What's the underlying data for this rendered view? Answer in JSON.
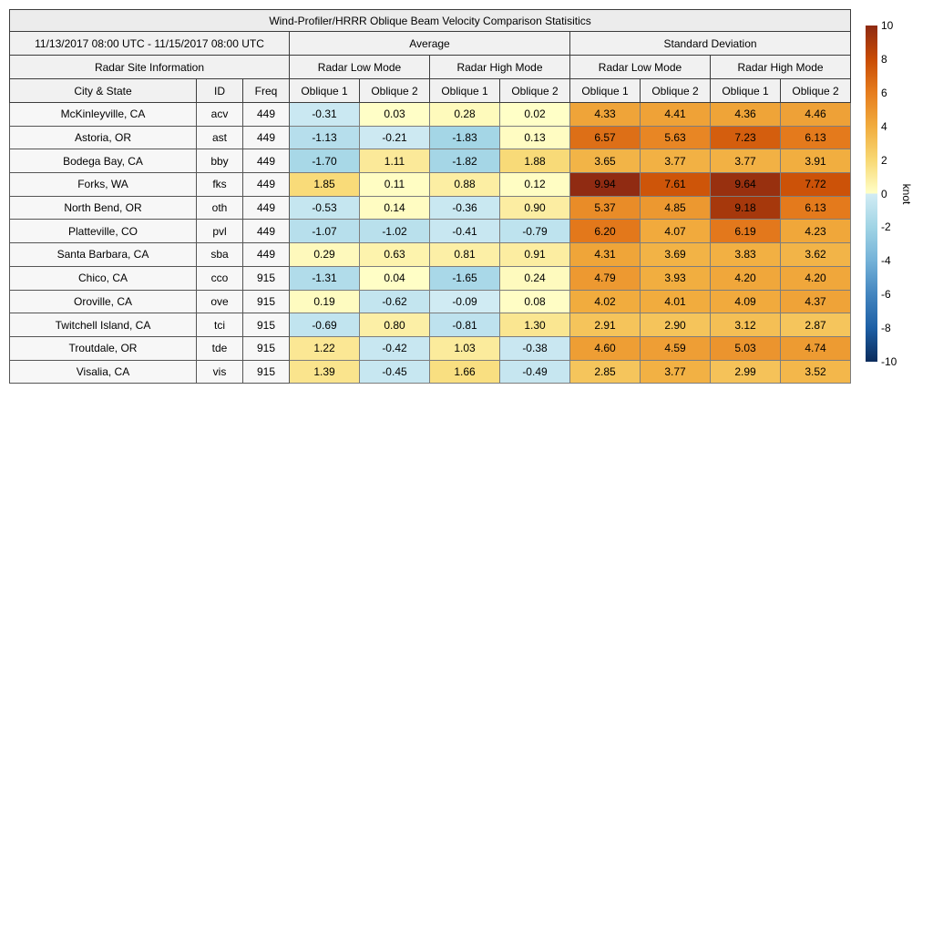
{
  "figure": {
    "background": "#ffffff"
  },
  "table": {
    "title": "Wind-Profiler/HRRR Oblique Beam Velocity Comparison Statisitics",
    "date_range": "11/13/2017 08:00 UTC - 11/15/2017 08:00 UTC",
    "site_info_header": "Radar Site Information",
    "avg_header": "Average",
    "std_header": "Standard Deviation",
    "mode_headers": [
      "Radar Low Mode",
      "Radar High Mode",
      "Radar Low Mode",
      "Radar High Mode"
    ],
    "col_city": "City & State",
    "col_id": "ID",
    "col_freq": "Freq",
    "col_oblique1": "Oblique 1",
    "col_oblique2": "Oblique 2"
  },
  "chart_data": {
    "type": "heatmap",
    "title": "Wind-Profiler/HRRR Oblique Beam Velocity Comparison Statisitics",
    "value_columns": [
      "Average Radar Low Mode Oblique 1",
      "Average Radar Low Mode Oblique 2",
      "Average Radar High Mode Oblique 1",
      "Average Radar High Mode Oblique 2",
      "Standard Deviation Radar Low Mode Oblique 1",
      "Standard Deviation Radar Low Mode Oblique 2",
      "Standard Deviation Radar High Mode Oblique 1",
      "Standard Deviation Radar High Mode Oblique 2"
    ],
    "rows": [
      {
        "city": "McKinleyville, CA",
        "id": "acv",
        "freq": "449",
        "values": [
          "-0.31",
          "0.03",
          "0.28",
          "0.02",
          "4.33",
          "4.41",
          "4.36",
          "4.46"
        ]
      },
      {
        "city": "Astoria, OR",
        "id": "ast",
        "freq": "449",
        "values": [
          "-1.13",
          "-0.21",
          "-1.83",
          "0.13",
          "6.57",
          "5.63",
          "7.23",
          "6.13"
        ]
      },
      {
        "city": "Bodega Bay, CA",
        "id": "bby",
        "freq": "449",
        "values": [
          "-1.70",
          "1.11",
          "-1.82",
          "1.88",
          "3.65",
          "3.77",
          "3.77",
          "3.91"
        ]
      },
      {
        "city": "Forks, WA",
        "id": "fks",
        "freq": "449",
        "values": [
          "1.85",
          "0.11",
          "0.88",
          "0.12",
          "9.94",
          "7.61",
          "9.64",
          "7.72"
        ]
      },
      {
        "city": "North Bend, OR",
        "id": "oth",
        "freq": "449",
        "values": [
          "-0.53",
          "0.14",
          "-0.36",
          "0.90",
          "5.37",
          "4.85",
          "9.18",
          "6.13"
        ]
      },
      {
        "city": "Platteville, CO",
        "id": "pvl",
        "freq": "449",
        "values": [
          "-1.07",
          "-1.02",
          "-0.41",
          "-0.79",
          "6.20",
          "4.07",
          "6.19",
          "4.23"
        ]
      },
      {
        "city": "Santa Barbara, CA",
        "id": "sba",
        "freq": "449",
        "values": [
          "0.29",
          "0.63",
          "0.81",
          "0.91",
          "4.31",
          "3.69",
          "3.83",
          "3.62"
        ]
      },
      {
        "city": "Chico, CA",
        "id": "cco",
        "freq": "915",
        "values": [
          "-1.31",
          "0.04",
          "-1.65",
          "0.24",
          "4.79",
          "3.93",
          "4.20",
          "4.20"
        ]
      },
      {
        "city": "Oroville, CA",
        "id": "ove",
        "freq": "915",
        "values": [
          "0.19",
          "-0.62",
          "-0.09",
          "0.08",
          "4.02",
          "4.01",
          "4.09",
          "4.37"
        ]
      },
      {
        "city": "Twitchell Island, CA",
        "id": "tci",
        "freq": "915",
        "values": [
          "-0.69",
          "0.80",
          "-0.81",
          "1.30",
          "2.91",
          "2.90",
          "3.12",
          "2.87"
        ]
      },
      {
        "city": "Troutdale, OR",
        "id": "tde",
        "freq": "915",
        "values": [
          "1.22",
          "-0.42",
          "1.03",
          "-0.38",
          "4.60",
          "4.59",
          "5.03",
          "4.74"
        ]
      },
      {
        "city": "Visalia, CA",
        "id": "vis",
        "freq": "915",
        "values": [
          "1.39",
          "-0.45",
          "1.66",
          "-0.49",
          "2.85",
          "3.77",
          "2.99",
          "3.52"
        ]
      }
    ],
    "colorbar": {
      "label": "knot",
      "ticks": [
        "10",
        "8",
        "6",
        "4",
        "2",
        "0",
        "-2",
        "-4",
        "-6",
        "-8",
        "-10"
      ],
      "vmin": -10,
      "vmax": 10,
      "colormap_stops": [
        [
          -10,
          "#0b2c5c"
        ],
        [
          -8,
          "#1d5fa5"
        ],
        [
          -6,
          "#4385bf"
        ],
        [
          -4,
          "#74b2d8"
        ],
        [
          -2,
          "#a0d4e5"
        ],
        [
          -0.001,
          "#d2ecf4"
        ],
        [
          0,
          "#ffffc8"
        ],
        [
          2,
          "#f8d873"
        ],
        [
          4,
          "#f1ac3e"
        ],
        [
          6,
          "#e67d1e"
        ],
        [
          8,
          "#c84b04"
        ],
        [
          10,
          "#8e2a12"
        ]
      ]
    }
  }
}
